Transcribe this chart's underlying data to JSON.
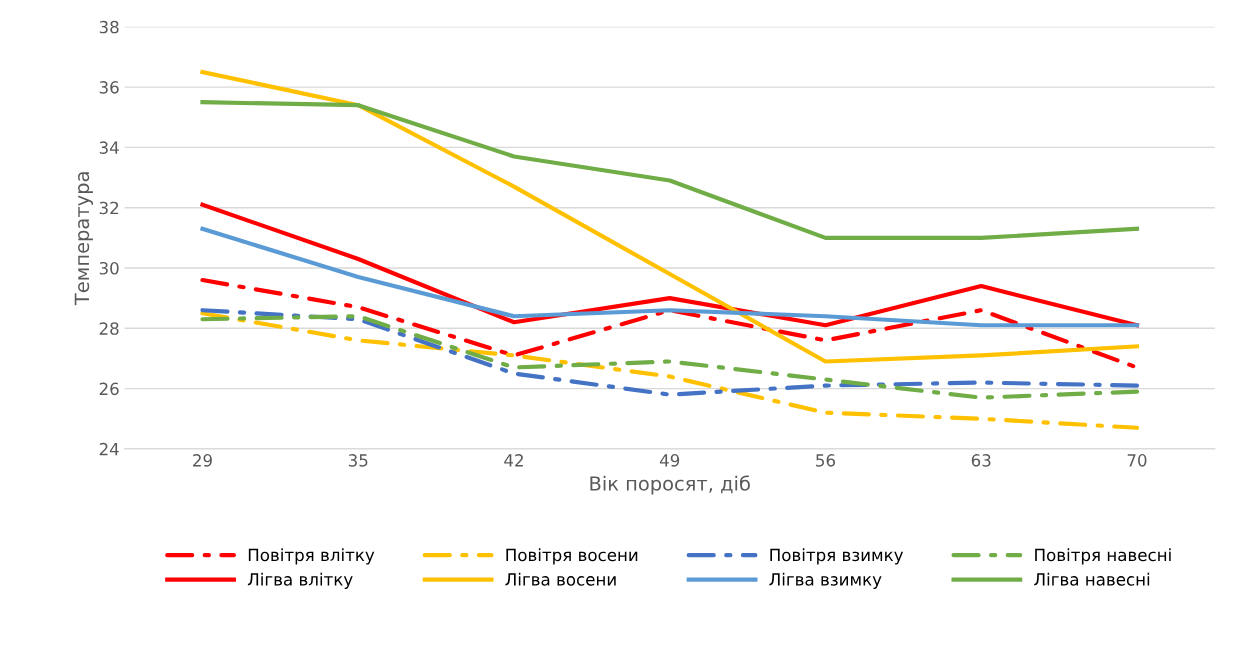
{
  "chart_data": {
    "type": "line",
    "xlabel": "Вік поросят, діб",
    "ylabel": "Температура",
    "categories": [
      "29",
      "35",
      "42",
      "49",
      "56",
      "63",
      "70"
    ],
    "ylim": [
      24,
      38
    ],
    "yticks": [
      24,
      26,
      28,
      30,
      32,
      34,
      36,
      38
    ],
    "grid": "y",
    "legend": "bottom",
    "series": [
      {
        "name": "Повітря влітку",
        "color": "#ff0000",
        "line_style": "dashed",
        "values": [
          29.6,
          28.7,
          27.1,
          28.6,
          27.6,
          28.6,
          26.7
        ]
      },
      {
        "name": "Лігва влітку",
        "color": "#ff0000",
        "line_style": "solid",
        "values": [
          32.1,
          30.3,
          28.2,
          29.0,
          28.1,
          29.4,
          28.1
        ]
      },
      {
        "name": "Повітря восени",
        "color": "#ffc000",
        "line_style": "dashed",
        "values": [
          28.5,
          27.6,
          27.1,
          26.4,
          25.2,
          25.0,
          24.7
        ]
      },
      {
        "name": "Лігва восени",
        "color": "#ffc000",
        "line_style": "solid",
        "values": [
          36.5,
          35.4,
          32.7,
          29.8,
          26.9,
          27.1,
          27.4
        ]
      },
      {
        "name": "Повітря взимку",
        "color": "#4472c4",
        "line_style": "dashed",
        "values": [
          28.6,
          28.3,
          26.5,
          25.8,
          26.1,
          26.2,
          26.1
        ]
      },
      {
        "name": "Лігва взимку",
        "color": "#5b9bd5",
        "line_style": "solid",
        "values": [
          31.3,
          29.7,
          28.4,
          28.6,
          28.4,
          28.1,
          28.1
        ]
      },
      {
        "name": "Повітря навесні",
        "color": "#70ad47",
        "line_style": "dashed",
        "values": [
          28.3,
          28.4,
          26.7,
          26.9,
          26.3,
          25.7,
          25.9
        ]
      },
      {
        "name": "Лігва навесні",
        "color": "#70ad47",
        "line_style": "solid",
        "values": [
          35.5,
          35.4,
          33.7,
          32.9,
          31.0,
          31.0,
          31.3
        ]
      }
    ]
  }
}
